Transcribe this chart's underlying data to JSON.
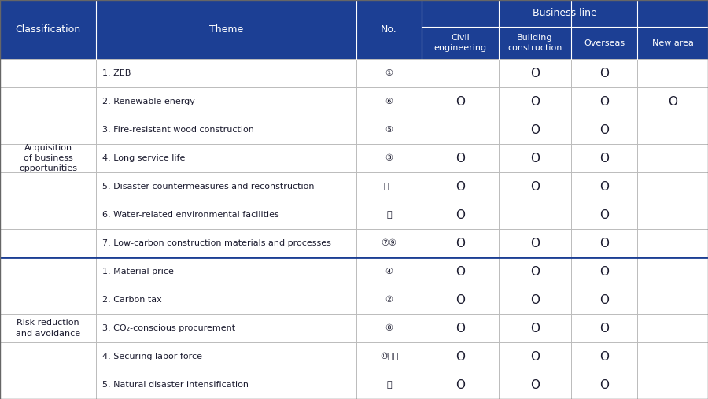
{
  "header_bg": "#1c3f94",
  "header_text_color": "#ffffff",
  "body_bg": "#ffffff",
  "body_text_color": "#1a1a2e",
  "grid_color": "#bbbbbb",
  "sep_line_color": "#1c3f94",
  "classification_groups": [
    {
      "label": "Acquisition\nof business\nopportunities",
      "rows": 7
    },
    {
      "label": "Risk reduction\nand avoidance",
      "rows": 5
    }
  ],
  "themes": [
    "1. ZEB",
    "2. Renewable energy",
    "3. Fire-resistant wood construction",
    "4. Long service life",
    "5. Disaster countermeasures and reconstruction",
    "6. Water-related environmental facilities",
    "7. Low-carbon construction materials and processes",
    "1. Material price",
    "2. Carbon tax",
    "3. CO₂-conscious procurement",
    "4. Securing labor force",
    "5. Natural disaster intensification"
  ],
  "numbers": [
    "①",
    "⑥",
    "⑤",
    "③",
    "⑮⑯",
    "⑬",
    "⑦⑨",
    "④",
    "②",
    "⑧",
    "⑩⑪⑫",
    "⑭"
  ],
  "circles": [
    [
      0,
      1,
      1,
      0
    ],
    [
      1,
      1,
      1,
      1
    ],
    [
      0,
      1,
      1,
      0
    ],
    [
      1,
      1,
      1,
      0
    ],
    [
      1,
      1,
      1,
      0
    ],
    [
      1,
      0,
      1,
      0
    ],
    [
      1,
      1,
      1,
      0
    ],
    [
      1,
      1,
      1,
      0
    ],
    [
      1,
      1,
      1,
      0
    ],
    [
      1,
      1,
      1,
      0
    ],
    [
      1,
      1,
      1,
      0
    ],
    [
      1,
      1,
      1,
      0
    ]
  ],
  "business_line_label": "Business line",
  "col_headers_left": [
    "Classification",
    "Theme",
    "No."
  ],
  "col_headers_right": [
    "Civil\nengineering",
    "Building\nconstruction",
    "Overseas",
    "New area"
  ],
  "fig_width": 9.0,
  "fig_height": 5.07,
  "dpi": 100
}
